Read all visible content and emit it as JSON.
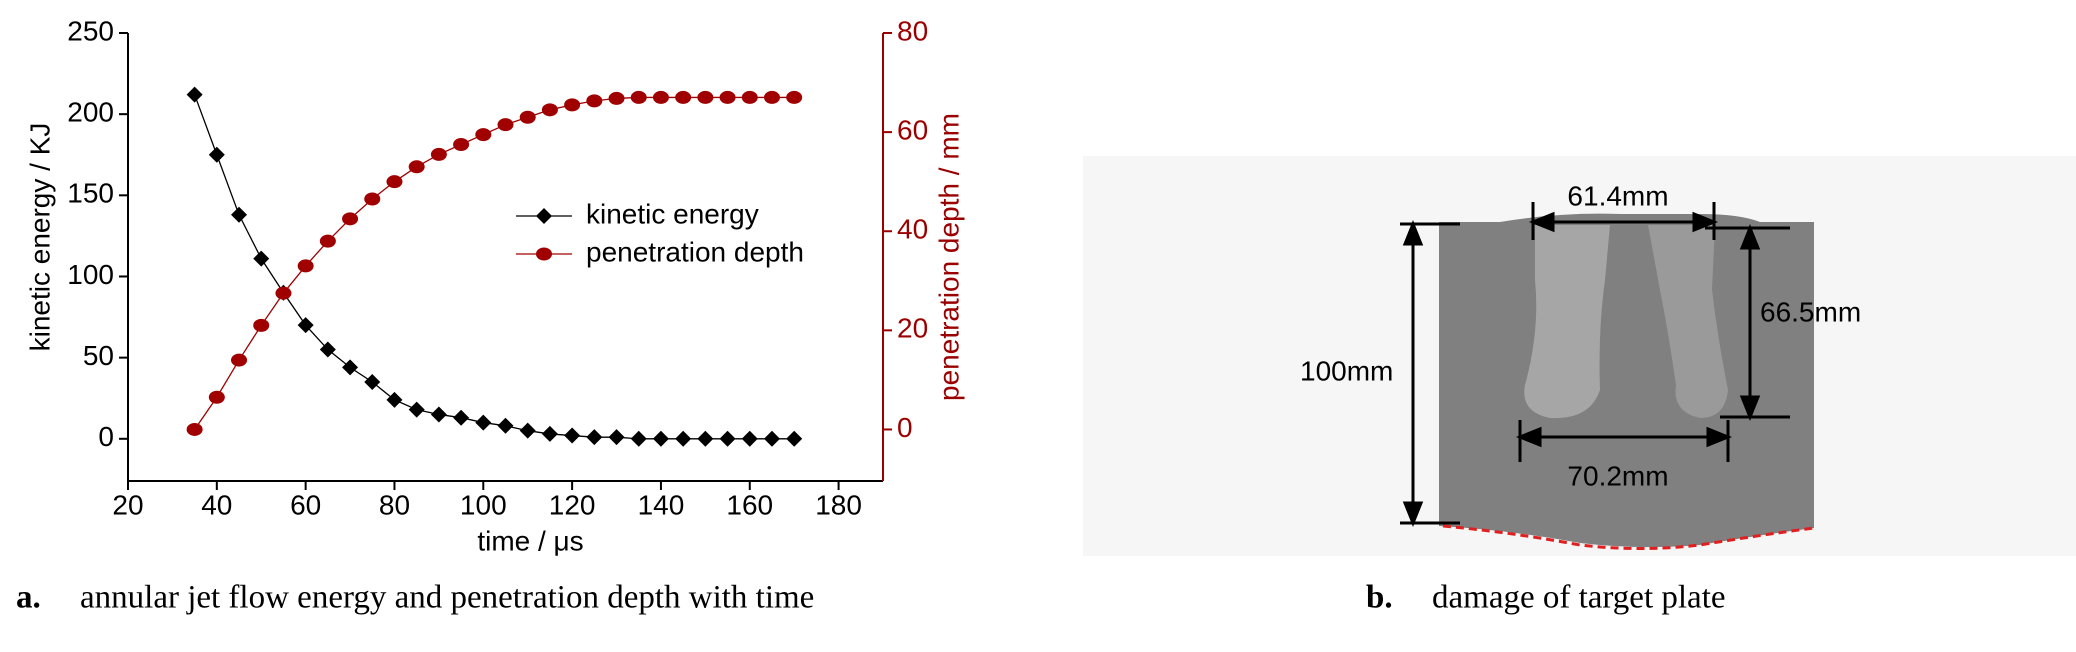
{
  "chart_data": {
    "type": "line",
    "x_label": "time / μs",
    "y_label": "kinetic energy / KJ",
    "y2_label": "penetration depth / mm",
    "x": [
      35,
      40,
      45,
      50,
      55,
      60,
      65,
      70,
      75,
      80,
      85,
      90,
      95,
      100,
      105,
      110,
      115,
      120,
      125,
      130,
      135,
      140,
      145,
      150,
      155,
      160,
      165,
      170
    ],
    "series": [
      {
        "name": "kinetic energy",
        "color": "#000000",
        "marker": "diamond",
        "values": [
          212,
          175,
          138,
          111,
          90,
          70,
          55,
          44,
          35,
          24,
          18,
          15,
          13,
          10,
          8,
          5,
          3,
          2,
          1,
          1,
          0,
          0,
          0,
          0,
          0,
          0,
          0,
          0
        ]
      },
      {
        "name": "penetration depth",
        "color": "#a00000",
        "marker": "circle",
        "axis": "y2",
        "values": [
          0,
          6.5,
          14,
          21,
          27.5,
          33,
          38,
          42.5,
          46.5,
          50,
          53,
          55.5,
          57.5,
          59.5,
          61.5,
          63,
          64.5,
          65.5,
          66.3,
          66.8,
          67,
          67,
          67,
          67,
          67,
          67,
          67,
          67
        ]
      }
    ],
    "xlim": [
      20,
      190
    ],
    "xticks": [
      20,
      40,
      60,
      80,
      100,
      120,
      140,
      160,
      180
    ],
    "ylim": [
      -26,
      250
    ],
    "yticks": [
      0,
      50,
      100,
      150,
      200,
      250
    ],
    "y2lim": [
      -10.4,
      80
    ],
    "y2ticks": [
      0,
      20,
      40,
      60,
      80
    ],
    "y2_color": "#9b0000",
    "legend": "upper-right"
  },
  "captions": {
    "a_tag": "a.",
    "a_text": "annular jet flow energy and penetration depth with time",
    "b_tag": "b.",
    "b_text": "damage of target plate"
  },
  "figure_b": {
    "top_width": "61.4mm",
    "hole_depth": "66.5mm",
    "thickness": "100mm",
    "bottom_width": "70.2mm"
  }
}
